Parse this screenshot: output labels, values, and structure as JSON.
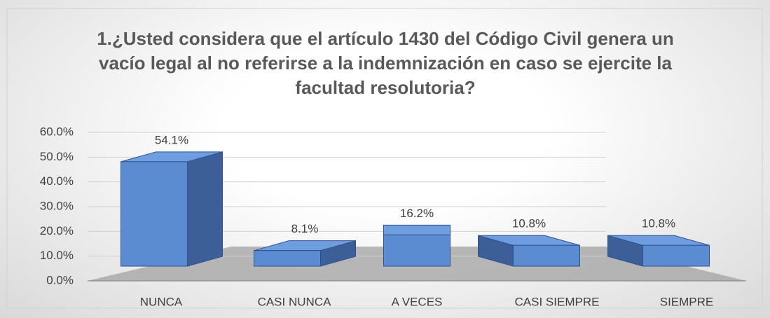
{
  "chart_data": {
    "type": "bar3d",
    "title": "1.¿Usted considera que el artículo 1430 del Código Civil genera un vacío legal al no referirse a la indemnización en caso se ejercite la facultad resolutoria?",
    "categories": [
      "NUNCA",
      "CASI NUNCA",
      "A VECES",
      "CASI SIEMPRE",
      "SIEMPRE"
    ],
    "values": [
      54.1,
      8.1,
      16.2,
      10.8,
      10.8
    ],
    "value_labels": [
      "54.1%",
      "8.1%",
      "16.2%",
      "10.8%",
      "10.8%"
    ],
    "color": "#5b8bd0",
    "ylim": [
      0,
      60
    ],
    "yticks": [
      {
        "value": 0,
        "label": "0.0%"
      },
      {
        "value": 10,
        "label": "10.0%"
      },
      {
        "value": 20,
        "label": "20.0%"
      },
      {
        "value": 30,
        "label": "30.0%"
      },
      {
        "value": 40,
        "label": "40.0%"
      },
      {
        "value": 50,
        "label": "50.0%"
      },
      {
        "value": 60,
        "label": "60.0%"
      }
    ],
    "grid": true
  }
}
